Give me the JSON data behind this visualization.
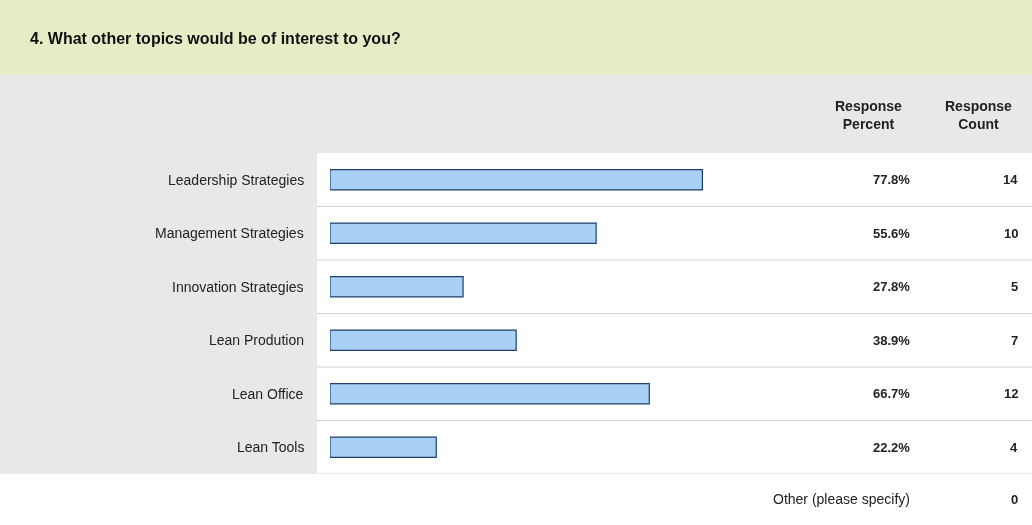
{
  "chart_data": {
    "type": "bar",
    "orientation": "horizontal",
    "title": "4. What other topics would be of interest to you?",
    "categories": [
      "Leadership Strategies",
      "Management Strategies",
      "Innovation Strategies",
      "Lean Prodution",
      "Lean Office",
      "Lean Tools"
    ],
    "values": [
      77.8,
      55.6,
      27.8,
      38.9,
      66.7,
      22.2
    ],
    "value_labels": [
      "77.8%",
      "55.6%",
      "27.8%",
      "38.9%",
      "66.7%",
      "22.2%"
    ],
    "color": "#a9d0f5",
    "tick_labels": "y",
    "legend": false,
    "annotations": [
      "Response Percent",
      "Response Count",
      "14",
      "10",
      "5",
      "7",
      "12",
      "4",
      "Other (please specify)",
      "0"
    ]
  }
}
